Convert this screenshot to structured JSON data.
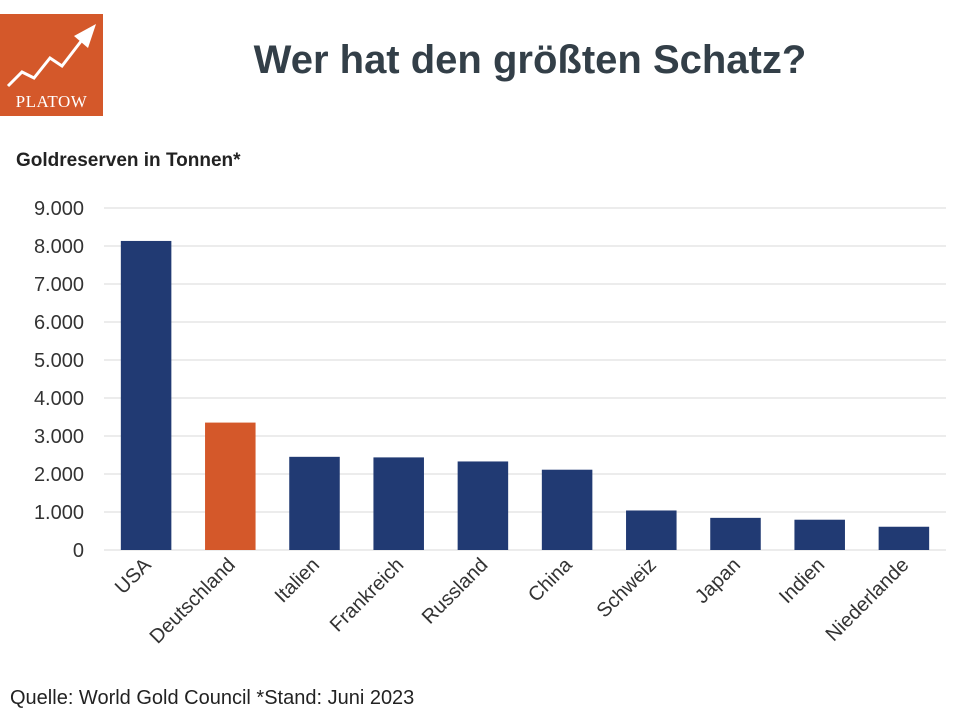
{
  "brand": {
    "logo_text": "PLATOW",
    "color": "#d4582a"
  },
  "header": {
    "title": "Wer hat den größten Schatz?"
  },
  "chart_data": {
    "type": "bar",
    "title": "Wer hat den größten Schatz?",
    "subtitle": "Goldreserven in Tonnen*",
    "xlabel": "",
    "ylabel": "",
    "categories": [
      "USA",
      "Deutschland",
      "Italien",
      "Frankreich",
      "Russland",
      "China",
      "Schweiz",
      "Japan",
      "Indien",
      "Niederlande"
    ],
    "values": [
      8133,
      3353,
      2452,
      2437,
      2330,
      2113,
      1040,
      846,
      797,
      612
    ],
    "highlight_index": 1,
    "ylim": [
      0,
      9000
    ],
    "yticks": [
      0,
      1000,
      2000,
      3000,
      4000,
      5000,
      6000,
      7000,
      8000,
      9000
    ],
    "ytick_labels": [
      "0",
      "1.000",
      "2.000",
      "3.000",
      "4.000",
      "5.000",
      "6.000",
      "7.000",
      "8.000",
      "9.000"
    ],
    "grid": true,
    "legend": "none",
    "colors": {
      "bar": "#213a73",
      "highlight": "#d4582a",
      "grid": "#d9d9d9"
    }
  },
  "footer": {
    "source": "Quelle: World Gold Council *Stand: Juni 2023"
  }
}
